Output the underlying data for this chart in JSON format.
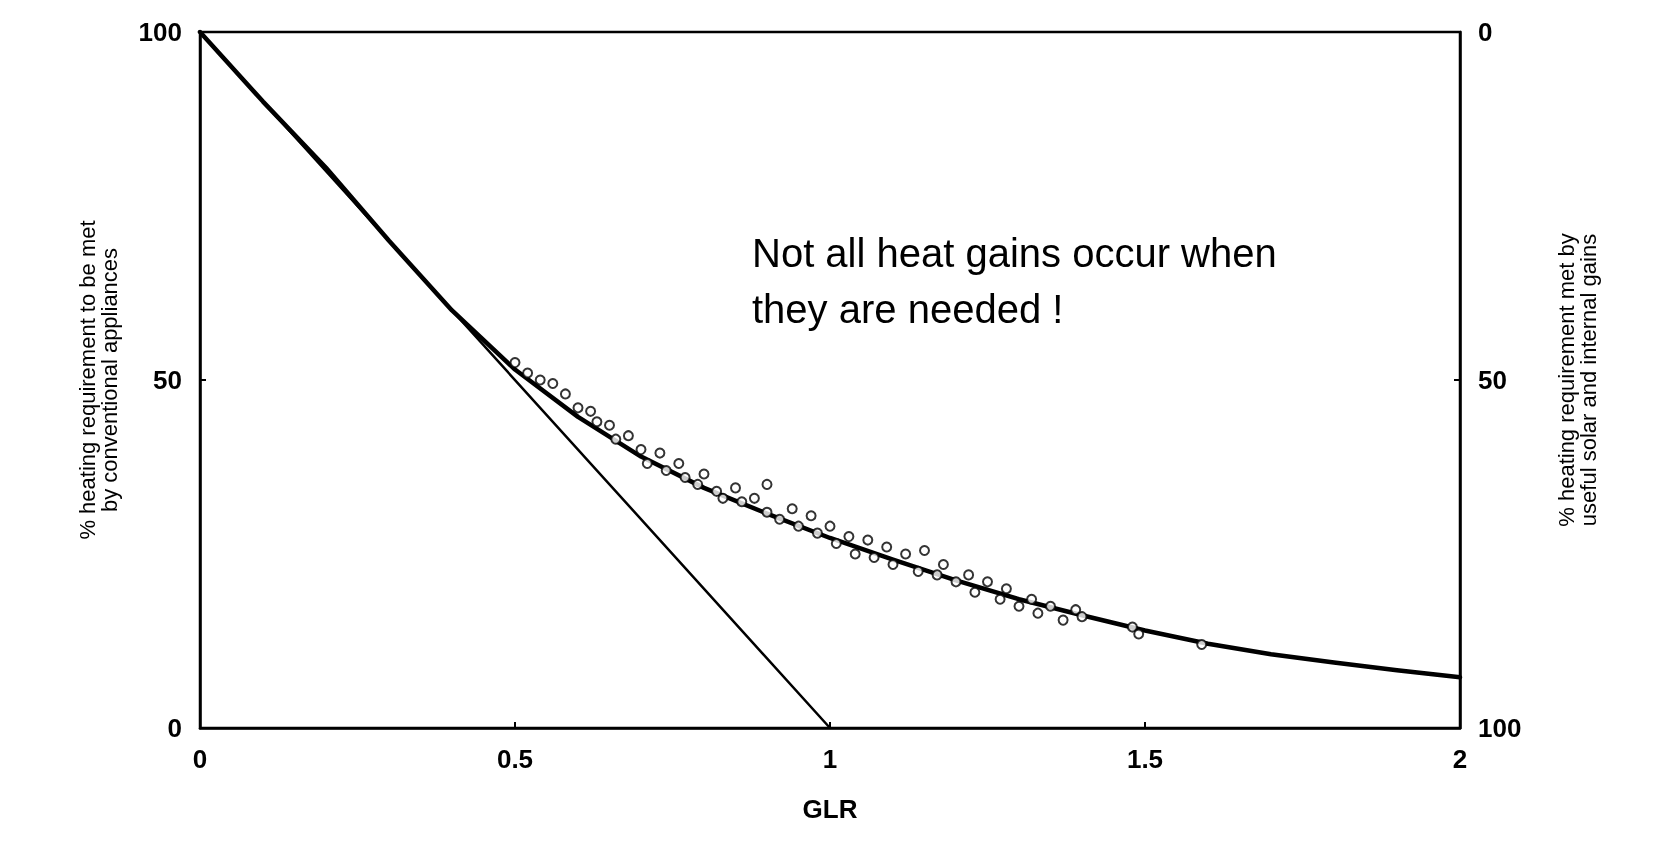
{
  "chart_data": {
    "type": "line",
    "xlabel": "GLR",
    "ylabel": "% heating requirement to be met\nby conventional appliances",
    "y2label": "% heating requirement met by\nuseful solar and internal gains",
    "annotations": [
      "Not all heat gains occur when\nthey are needed !"
    ],
    "xlim": [
      0,
      2
    ],
    "xticks": [
      0,
      0.5,
      1,
      1.5,
      2
    ],
    "ylim": [
      0,
      100
    ],
    "yticks": [
      0,
      50,
      100
    ],
    "y2lim": [
      100,
      0
    ],
    "y2ticks": [
      0,
      50,
      100
    ],
    "grid": false,
    "series": [
      {
        "color": "#000000",
        "marker": "none",
        "line_style": "solid",
        "x": [
          0,
          0.1,
          0.2,
          0.3,
          0.4,
          0.5,
          0.6,
          0.7,
          0.8,
          0.9,
          1.0,
          1.1,
          1.2,
          1.3,
          1.4,
          1.5,
          1.6,
          1.7,
          1.8,
          1.9,
          2.0
        ],
        "values": [
          100,
          90,
          80.5,
          70,
          60,
          51.5,
          44.7,
          39,
          34.5,
          30.8,
          27.3,
          24.2,
          21.2,
          18.5,
          16.2,
          14,
          12.1,
          10.6,
          9.4,
          8.3,
          7.3
        ]
      },
      {
        "color": "#000000",
        "marker": "none",
        "line_style": "solid",
        "x": [
          0,
          1
        ],
        "values": [
          100,
          0
        ]
      },
      {
        "type": "scatter",
        "color": "#000000",
        "marker": "circle",
        "x": [
          0.5,
          0.52,
          0.54,
          0.56,
          0.58,
          0.6,
          0.62,
          0.63,
          0.65,
          0.66,
          0.68,
          0.7,
          0.71,
          0.73,
          0.74,
          0.76,
          0.77,
          0.79,
          0.8,
          0.82,
          0.83,
          0.85,
          0.86,
          0.88,
          0.9,
          0.9,
          0.92,
          0.94,
          0.95,
          0.97,
          0.98,
          1.0,
          1.01,
          1.03,
          1.04,
          1.06,
          1.07,
          1.09,
          1.1,
          1.12,
          1.14,
          1.15,
          1.17,
          1.18,
          1.2,
          1.22,
          1.23,
          1.25,
          1.27,
          1.28,
          1.3,
          1.32,
          1.33,
          1.35,
          1.37,
          1.39,
          1.4,
          1.48,
          1.49,
          1.59
        ],
        "values": [
          52.5,
          51,
          50,
          49.5,
          48,
          46,
          45.5,
          44,
          43.5,
          41.5,
          42,
          40,
          38,
          39.5,
          37,
          38,
          36,
          35,
          36.5,
          34,
          33,
          34.5,
          32.5,
          33,
          31,
          35,
          30,
          31.5,
          29,
          30.5,
          28,
          29,
          26.5,
          27.5,
          25,
          27,
          24.5,
          26,
          23.5,
          25,
          22.5,
          25.5,
          22,
          23.5,
          21,
          22,
          19.5,
          21,
          18.5,
          20,
          17.5,
          18.5,
          16.5,
          17.5,
          15.5,
          17,
          16,
          14.5,
          13.5,
          12
        ]
      }
    ]
  }
}
